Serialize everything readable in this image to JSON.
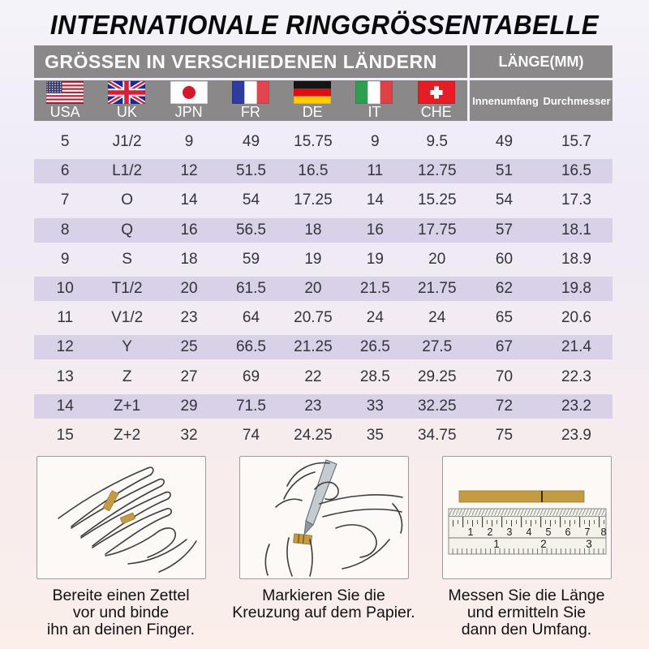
{
  "title": "INTERNATIONALE RINGGRÖSSENTABELLE",
  "table": {
    "header": {
      "left": "GRÖSSEN IN VERSCHIEDENEN LÄNDERN",
      "right": "LÄNGE(MM)"
    },
    "countries": [
      {
        "code": "USA",
        "flag": "usa-flag"
      },
      {
        "code": "UK",
        "flag": "uk-flag"
      },
      {
        "code": "JPN",
        "flag": "japan-flag"
      },
      {
        "code": "FR",
        "flag": "france-flag"
      },
      {
        "code": "DE",
        "flag": "germany-flag"
      },
      {
        "code": "IT",
        "flag": "italy-flag"
      },
      {
        "code": "CHE",
        "flag": "switzerland-flag"
      }
    ],
    "length_columns": [
      "Innenumfang",
      "Durchmesser"
    ],
    "rows": [
      [
        "5",
        "J1/2",
        "9",
        "49",
        "15.75",
        "9",
        "9.5",
        "49",
        "15.7"
      ],
      [
        "6",
        "L1/2",
        "12",
        "51.5",
        "16.5",
        "11",
        "12.75",
        "51",
        "16.5"
      ],
      [
        "7",
        "O",
        "14",
        "54",
        "17.25",
        "14",
        "15.25",
        "54",
        "17.3"
      ],
      [
        "8",
        "Q",
        "16",
        "56.5",
        "18",
        "16",
        "17.75",
        "57",
        "18.1"
      ],
      [
        "9",
        "S",
        "18",
        "59",
        "19",
        "19",
        "20",
        "60",
        "18.9"
      ],
      [
        "10",
        "T1/2",
        "20",
        "61.5",
        "20",
        "21.5",
        "21.75",
        "62",
        "19.8"
      ],
      [
        "11",
        "V1/2",
        "23",
        "64",
        "20.75",
        "24",
        "24",
        "65",
        "20.6"
      ],
      [
        "12",
        "Y",
        "25",
        "66.5",
        "21.25",
        "26.5",
        "27.5",
        "67",
        "21.4"
      ],
      [
        "13",
        "Z",
        "27",
        "69",
        "22",
        "28.5",
        "29.25",
        "70",
        "22.3"
      ],
      [
        "14",
        "Z+1",
        "29",
        "71.5",
        "23",
        "33",
        "32.25",
        "72",
        "23.2"
      ],
      [
        "15",
        "Z+2",
        "32",
        "74",
        "24.25",
        "35",
        "34.75",
        "75",
        "23.9"
      ]
    ]
  },
  "instructions": [
    {
      "caption_lines": [
        "Bereite einen Zettel",
        "vor und binde",
        "ihn an deinen Finger."
      ]
    },
    {
      "caption_lines": [
        "Markieren Sie die",
        "Kreuzung auf dem Papier."
      ]
    },
    {
      "caption_lines": [
        "Messen Sie die Länge",
        "und ermitteln Sie",
        "dann den Umfang."
      ],
      "ruler_top_scale": [
        "1",
        "2",
        "3",
        "4",
        "5",
        "6",
        "7",
        "8"
      ],
      "ruler_bottom_scale": [
        "1",
        "2",
        "3"
      ]
    }
  ],
  "colors": {
    "header_bg": "#8a8888",
    "row_stripe": "#d8d1e7",
    "paper_strip": "#c49a43"
  }
}
